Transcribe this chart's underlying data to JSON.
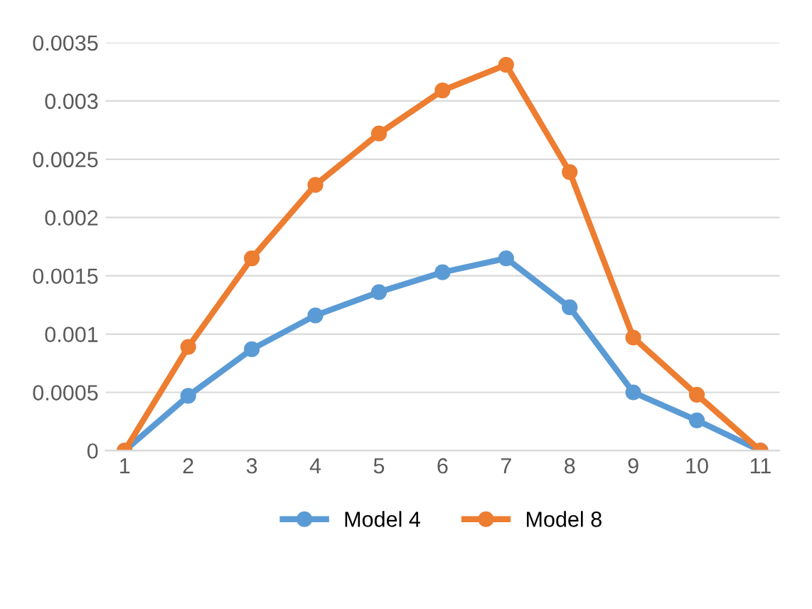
{
  "chart_data": {
    "type": "line",
    "categories": [
      "1",
      "2",
      "3",
      "4",
      "5",
      "6",
      "7",
      "8",
      "9",
      "10",
      "11"
    ],
    "series": [
      {
        "name": "Model 4",
        "color": "#5b9bd5",
        "values": [
          0,
          0.00047,
          0.00087,
          0.00116,
          0.00136,
          0.00153,
          0.00165,
          0.00123,
          0.0005,
          0.00026,
          0
        ]
      },
      {
        "name": "Model 8",
        "color": "#ed7d31",
        "values": [
          0,
          0.00089,
          0.00165,
          0.00228,
          0.00272,
          0.00309,
          0.00331,
          0.00239,
          0.00097,
          0.00048,
          0
        ]
      }
    ],
    "ylim": [
      0,
      0.0035
    ],
    "yticks": [
      0,
      0.0005,
      0.001,
      0.0015,
      0.002,
      0.0025,
      0.003,
      0.0035
    ],
    "grid": "y",
    "legend": "bottom",
    "marker": "circle",
    "line_style": "solid"
  }
}
